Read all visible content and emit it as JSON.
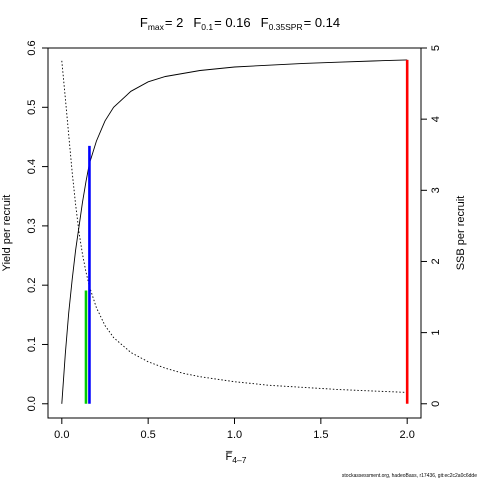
{
  "chart_data": {
    "type": "line",
    "title": {
      "fmax_label": "F",
      "fmax_sub": "max",
      "fmax_value": "= 2",
      "f01_label": "F",
      "f01_sub": "0.1",
      "f01_value": "= 0.16",
      "fspr_label": "F",
      "fspr_sub": "0.35SPR",
      "fspr_value": "= 0.14"
    },
    "xlabel": "F̅",
    "xlabel_sub": "4–7",
    "ylabel_left": "Yield per recruit",
    "ylabel_right": "SSB per recruit",
    "xlim": [
      -0.08,
      2.08
    ],
    "ylim_left": [
      -0.024,
      0.6
    ],
    "ylim_right": [
      -0.2,
      5.0
    ],
    "x_ticks": [
      0,
      0.5,
      1,
      1.5,
      2
    ],
    "x_tick_labels": [
      "0.0",
      "0.5",
      "1.0",
      "1.5",
      "2.0"
    ],
    "y_left_ticks": [
      0,
      0.1,
      0.2,
      0.3,
      0.4,
      0.5,
      0.6
    ],
    "y_left_tick_labels": [
      "0.0",
      "0.1",
      "0.2",
      "0.3",
      "0.4",
      "0.5",
      "0.6"
    ],
    "y_right_ticks": [
      0,
      1,
      2,
      3,
      4,
      5
    ],
    "y_right_tick_labels": [
      "0",
      "1",
      "2",
      "3",
      "4",
      "5"
    ],
    "series": [
      {
        "axis": "left",
        "style": "solid",
        "color": "#000000",
        "x": [
          0,
          0.02,
          0.04,
          0.06,
          0.08,
          0.1,
          0.12,
          0.14,
          0.16,
          0.2,
          0.25,
          0.3,
          0.4,
          0.5,
          0.6,
          0.8,
          1.0,
          1.2,
          1.4,
          1.6,
          1.8,
          2.0
        ],
        "y": [
          0.0,
          0.084,
          0.153,
          0.21,
          0.259,
          0.3,
          0.34,
          0.375,
          0.405,
          0.443,
          0.477,
          0.5,
          0.527,
          0.543,
          0.552,
          0.562,
          0.568,
          0.571,
          0.574,
          0.576,
          0.578,
          0.58
        ]
      },
      {
        "axis": "right",
        "style": "dotted",
        "color": "#000000",
        "x": [
          0,
          0.02,
          0.04,
          0.06,
          0.08,
          0.1,
          0.12,
          0.14,
          0.16,
          0.2,
          0.25,
          0.3,
          0.4,
          0.5,
          0.6,
          0.7,
          0.8,
          1.0,
          1.2,
          1.4,
          1.6,
          1.8,
          2.0
        ],
        "y": [
          4.82,
          4.3,
          3.78,
          3.25,
          2.8,
          2.4,
          2.1,
          1.85,
          1.65,
          1.35,
          1.1,
          0.93,
          0.72,
          0.59,
          0.5,
          0.43,
          0.38,
          0.31,
          0.26,
          0.23,
          0.2,
          0.18,
          0.16
        ]
      }
    ],
    "reference_lines": [
      {
        "x": 0.14,
        "y": 0.191,
        "color": "#00cc00"
      },
      {
        "x": 0.16,
        "y": 0.435,
        "color": "#0000ff"
      },
      {
        "x": 2.0,
        "y": 0.58,
        "color": "#ff0000"
      }
    ],
    "grid": false
  },
  "footer": "stockassessment.org, hadeoBass, r17436, git:ec2c2a0c6dde"
}
